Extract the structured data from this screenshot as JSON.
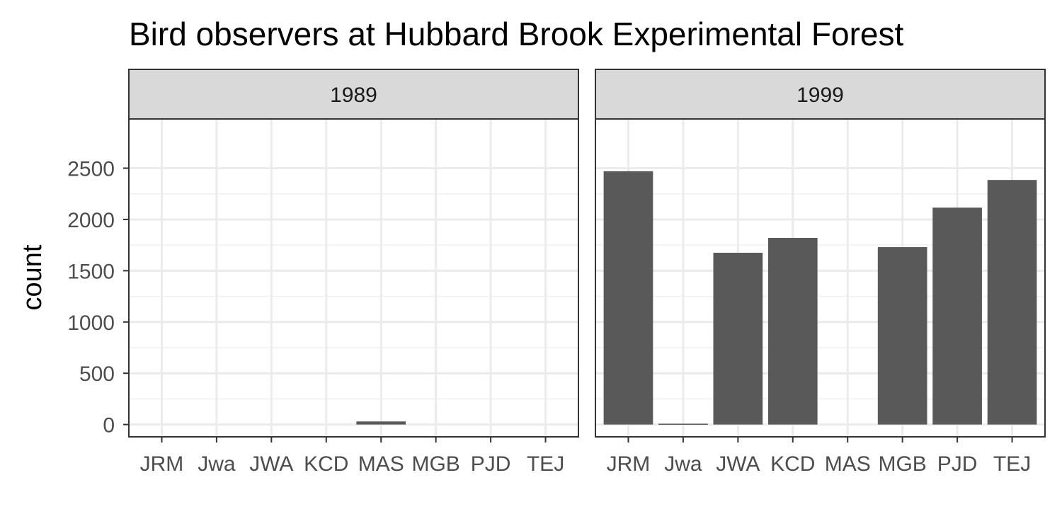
{
  "chart_data": {
    "type": "bar",
    "title": "Bird observers at Hubbard Brook Experimental Forest",
    "xlabel": "",
    "ylabel": "count",
    "categories": [
      "JRM",
      "Jwa",
      "JWA",
      "KCD",
      "MAS",
      "MGB",
      "PJD",
      "TEJ"
    ],
    "ylim": [
      -120,
      2980
    ],
    "yticks": [
      0,
      500,
      1000,
      1500,
      2000,
      2500
    ],
    "grid": true,
    "legend": "none",
    "bar_color": "#595959",
    "panels": [
      {
        "name": "1989",
        "values": [
          0,
          0,
          0,
          0,
          30,
          0,
          0,
          0
        ]
      },
      {
        "name": "1999",
        "values": [
          2470,
          8,
          1675,
          1820,
          0,
          1730,
          2115,
          2385
        ]
      }
    ]
  }
}
